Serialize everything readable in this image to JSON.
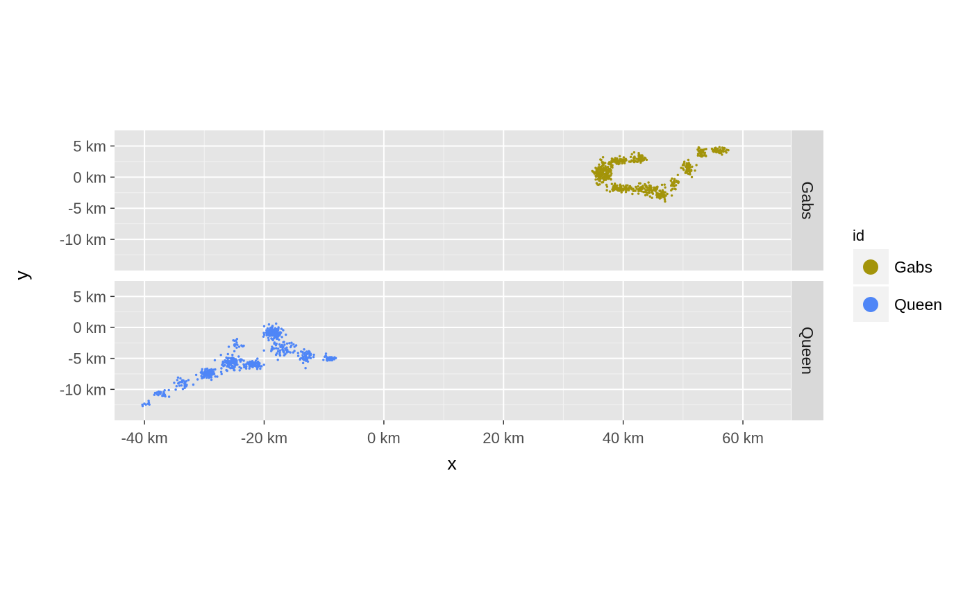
{
  "chart_data": {
    "type": "scatter",
    "xlabel": "x",
    "ylabel": "y",
    "xlim": [
      -45,
      68
    ],
    "ylim": [
      -15,
      7.5
    ],
    "x_ticks": [
      -40,
      -20,
      0,
      20,
      40,
      60
    ],
    "x_tick_labels": [
      "-40 km",
      "-20 km",
      "0 km",
      "20 km",
      "40 km",
      "60 km"
    ],
    "y_ticks": [
      5,
      0,
      -5,
      -10
    ],
    "y_tick_labels": [
      "5 km",
      "0 km",
      "-5 km",
      "-10 km"
    ],
    "grid": true,
    "facets": [
      "Gabs",
      "Queen"
    ],
    "legend": {
      "title": "id",
      "position": "right",
      "entries": [
        {
          "label": "Gabs",
          "color": "#A3940A"
        },
        {
          "label": "Queen",
          "color": "#4F86F7"
        }
      ]
    },
    "series": [
      {
        "name": "Gabs",
        "color": "#A3940A",
        "clusters": [
          {
            "x": 36.5,
            "y": 0.8,
            "sx": 1.3,
            "sy": 1.5,
            "n": 160
          },
          {
            "x": 39.5,
            "y": 2.6,
            "sx": 1.5,
            "sy": 0.5,
            "n": 60
          },
          {
            "x": 42.5,
            "y": 3.0,
            "sx": 1.0,
            "sy": 0.7,
            "n": 50
          },
          {
            "x": 39.5,
            "y": -1.8,
            "sx": 2.0,
            "sy": 0.6,
            "n": 80
          },
          {
            "x": 44.0,
            "y": -2.0,
            "sx": 2.0,
            "sy": 0.8,
            "n": 90
          },
          {
            "x": 46.5,
            "y": -2.8,
            "sx": 1.2,
            "sy": 0.7,
            "n": 40
          },
          {
            "x": 48.5,
            "y": -1.0,
            "sx": 0.9,
            "sy": 1.0,
            "n": 30
          },
          {
            "x": 50.8,
            "y": 1.5,
            "sx": 0.9,
            "sy": 1.2,
            "n": 50
          },
          {
            "x": 53.0,
            "y": 4.0,
            "sx": 0.8,
            "sy": 0.7,
            "n": 40
          },
          {
            "x": 56.0,
            "y": 4.3,
            "sx": 1.2,
            "sy": 0.5,
            "n": 50
          }
        ]
      },
      {
        "name": "Queen",
        "color": "#4F86F7",
        "clusters": [
          {
            "x": -18.5,
            "y": -0.8,
            "sx": 1.4,
            "sy": 1.0,
            "n": 130
          },
          {
            "x": -17.0,
            "y": -3.5,
            "sx": 2.0,
            "sy": 1.2,
            "n": 60
          },
          {
            "x": -13.0,
            "y": -4.8,
            "sx": 1.0,
            "sy": 1.0,
            "n": 50
          },
          {
            "x": -9.0,
            "y": -5.0,
            "sx": 0.8,
            "sy": 0.4,
            "n": 40
          },
          {
            "x": -22.0,
            "y": -6.0,
            "sx": 1.5,
            "sy": 0.7,
            "n": 70
          },
          {
            "x": -25.5,
            "y": -5.8,
            "sx": 1.5,
            "sy": 1.0,
            "n": 100
          },
          {
            "x": -29.5,
            "y": -7.5,
            "sx": 1.3,
            "sy": 0.8,
            "n": 90
          },
          {
            "x": -33.5,
            "y": -9.0,
            "sx": 1.2,
            "sy": 0.8,
            "n": 30
          },
          {
            "x": -37.0,
            "y": -10.5,
            "sx": 1.2,
            "sy": 0.6,
            "n": 20
          },
          {
            "x": -39.5,
            "y": -12.5,
            "sx": 0.6,
            "sy": 0.6,
            "n": 8
          },
          {
            "x": -24.5,
            "y": -3.0,
            "sx": 1.5,
            "sy": 1.0,
            "n": 20
          }
        ]
      }
    ]
  }
}
